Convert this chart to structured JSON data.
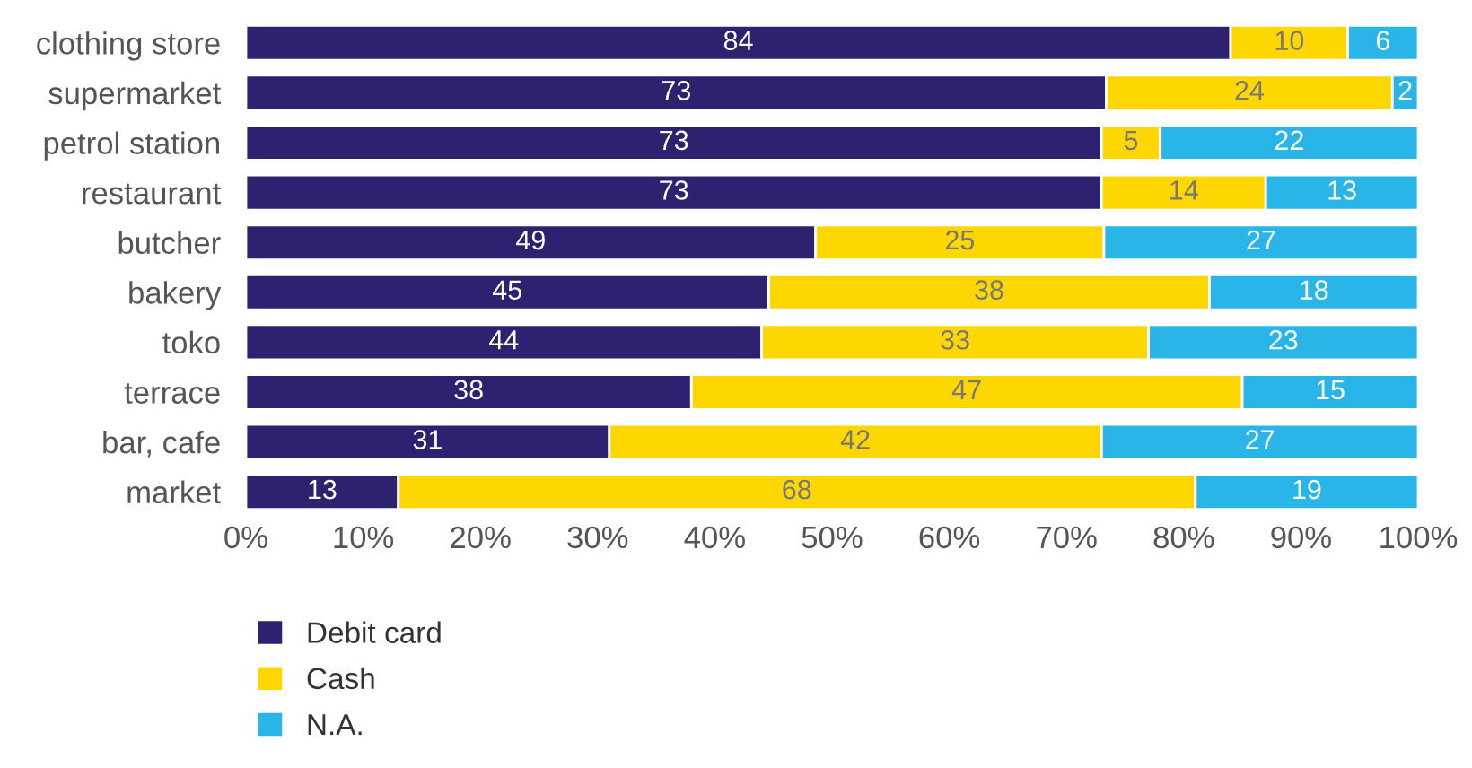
{
  "chart_data": {
    "type": "bar",
    "orientation": "horizontal",
    "stacked": true,
    "categories": [
      "clothing store",
      "supermarket",
      "petrol station",
      "restaurant",
      "butcher",
      "bakery",
      "toko",
      "terrace",
      "bar, cafe",
      "market"
    ],
    "series": [
      {
        "name": "Debit card",
        "color": "#2e2170",
        "values": [
          84,
          73.4,
          73,
          73,
          48.6,
          44.6,
          44,
          38,
          31,
          13
        ],
        "value_labels": [
          "84",
          "73",
          "73",
          "73",
          "49",
          "45",
          "44",
          "38",
          "31",
          "13"
        ]
      },
      {
        "name": "Cash",
        "color": "#ffd700",
        "values": [
          10,
          24.4,
          5,
          14,
          24.6,
          37.6,
          33,
          47,
          42,
          68
        ],
        "value_labels": [
          "10",
          "24",
          "5",
          "14",
          "25",
          "38",
          "33",
          "47",
          "42",
          "68"
        ]
      },
      {
        "name": "N.A.",
        "color": "#29b5e8",
        "values": [
          6,
          2.2,
          22,
          13,
          26.8,
          17.8,
          23,
          15,
          27,
          19
        ],
        "value_labels": [
          "6",
          "2",
          "22",
          "13",
          "27",
          "18",
          "23",
          "15",
          "27",
          "19"
        ]
      }
    ],
    "xlim": [
      0,
      100
    ],
    "xticks": [
      {
        "value": 0,
        "label": "0%"
      },
      {
        "value": 10,
        "label": "10%"
      },
      {
        "value": 20,
        "label": "20%"
      },
      {
        "value": 30,
        "label": "30%"
      },
      {
        "value": 40,
        "label": "40%"
      },
      {
        "value": 50,
        "label": "50%"
      },
      {
        "value": 60,
        "label": "60%"
      },
      {
        "value": 70,
        "label": "70%"
      },
      {
        "value": 80,
        "label": "80%"
      },
      {
        "value": 90,
        "label": "90%"
      },
      {
        "value": 100,
        "label": "100%"
      }
    ],
    "grid": false,
    "legend": "bottom"
  }
}
